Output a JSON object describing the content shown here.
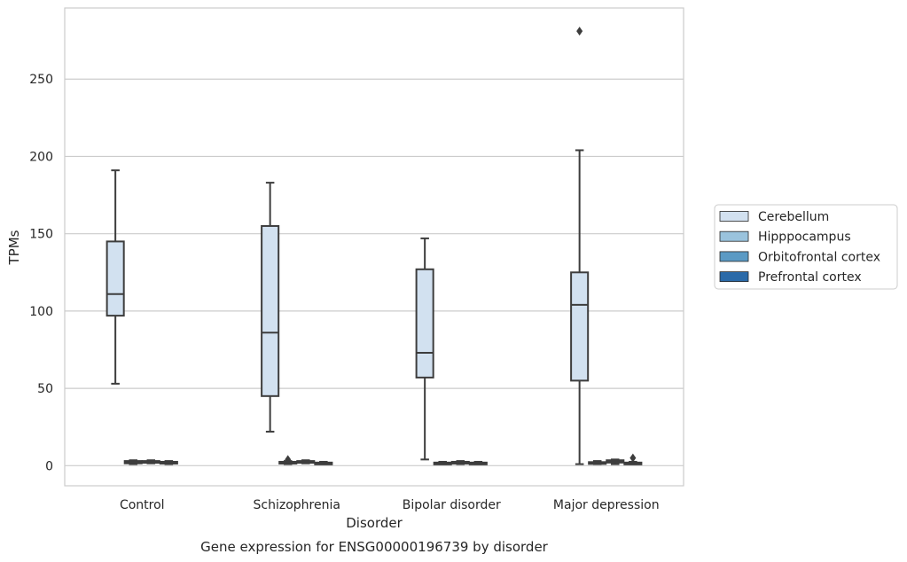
{
  "chart_data": {
    "type": "box",
    "xlabel": "Disorder",
    "ylabel": "TPMs",
    "caption": "Gene expression for ENSG00000196739 by disorder",
    "categories": [
      "Control",
      "Schizophrenia",
      "Bipolar disorder",
      "Major depression"
    ],
    "yticks": [
      0,
      50,
      100,
      150,
      200,
      250
    ],
    "ylim": [
      -13,
      296
    ],
    "grid": true,
    "legend_position": "right",
    "series": [
      {
        "name": "Cerebellum",
        "color": "#d2e1f0",
        "boxes": [
          {
            "whislo": 53,
            "q1": 97,
            "med": 111,
            "q3": 145,
            "whishi": 191,
            "fliers": []
          },
          {
            "whislo": 22,
            "q1": 45,
            "med": 86,
            "q3": 155,
            "whishi": 183,
            "fliers": []
          },
          {
            "whislo": 4,
            "q1": 57,
            "med": 73,
            "q3": 127,
            "whishi": 147,
            "fliers": []
          },
          {
            "whislo": 1,
            "q1": 55,
            "med": 104,
            "q3": 125,
            "whishi": 204,
            "fliers": [
              281
            ]
          }
        ]
      },
      {
        "name": "Hipppocampus",
        "color": "#9ac3dd",
        "boxes": [
          {
            "whislo": 1,
            "q1": 1.5,
            "med": 2,
            "q3": 3,
            "whishi": 3.5,
            "fliers": []
          },
          {
            "whislo": 1,
            "q1": 1.5,
            "med": 2,
            "q3": 2.5,
            "whishi": 3,
            "fliers": [
              4
            ]
          },
          {
            "whislo": 1,
            "q1": 1.2,
            "med": 1.5,
            "q3": 2,
            "whishi": 2.5,
            "fliers": []
          },
          {
            "whislo": 1,
            "q1": 1.3,
            "med": 1.6,
            "q3": 2.3,
            "whishi": 3,
            "fliers": []
          }
        ]
      },
      {
        "name": "Orbitofrontal cortex",
        "color": "#5b9ac4",
        "boxes": [
          {
            "whislo": 1.5,
            "q1": 2,
            "med": 2.5,
            "q3": 3,
            "whishi": 3.5,
            "fliers": []
          },
          {
            "whislo": 1.5,
            "q1": 2,
            "med": 2.5,
            "q3": 3,
            "whishi": 3.5,
            "fliers": []
          },
          {
            "whislo": 1,
            "q1": 1.5,
            "med": 2,
            "q3": 2.5,
            "whishi": 3,
            "fliers": []
          },
          {
            "whislo": 1,
            "q1": 2,
            "med": 2.5,
            "q3": 3.5,
            "whishi": 4,
            "fliers": []
          }
        ]
      },
      {
        "name": "Prefrontal cortex",
        "color": "#2b6aa8",
        "boxes": [
          {
            "whislo": 1,
            "q1": 1.5,
            "med": 2,
            "q3": 2.5,
            "whishi": 3,
            "fliers": []
          },
          {
            "whislo": 1,
            "q1": 1.3,
            "med": 1.6,
            "q3": 2,
            "whishi": 2.5,
            "fliers": []
          },
          {
            "whislo": 1,
            "q1": 1.2,
            "med": 1.5,
            "q3": 2,
            "whishi": 2.5,
            "fliers": []
          },
          {
            "whislo": 1,
            "q1": 1.3,
            "med": 1.6,
            "q3": 2,
            "whishi": 2.5,
            "fliers": [
              5
            ]
          }
        ]
      }
    ]
  }
}
